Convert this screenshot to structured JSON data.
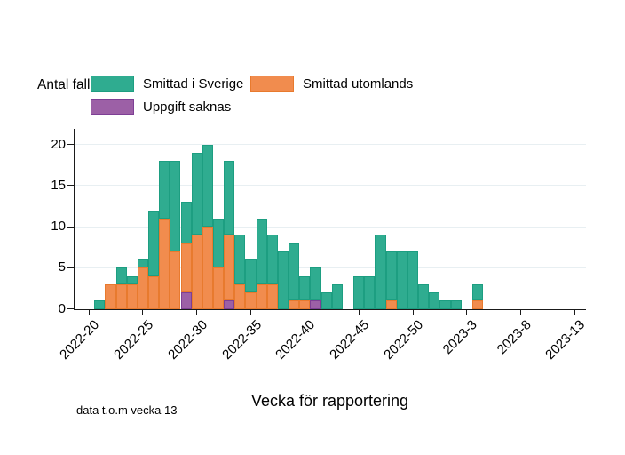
{
  "figure": {
    "y_axis_title": "Antal fall",
    "x_axis_title": "Vecka för rapportering",
    "footnote": "data t.o.m vecka 13"
  },
  "legend": {
    "items": [
      {
        "label": "Smittad i Sverige",
        "color": "#2FAC90",
        "border_color": "#1D9E81"
      },
      {
        "label": "Smittad utomlands",
        "color": "#F18C4E",
        "border_color": "#E87A2E"
      },
      {
        "label": "Uppgift saknas",
        "color": "#9C60A6",
        "border_color": "#7E3F95"
      }
    ]
  },
  "chart_data": {
    "type": "bar",
    "stacked": true,
    "stack_order": "bottom-to-top",
    "title": "",
    "xlabel": "Vecka för rapportering",
    "ylabel": "Antal fall",
    "ylim": [
      0,
      20
    ],
    "yticks": [
      0,
      5,
      10,
      15,
      20
    ],
    "grid": "horizontal",
    "grid_color": "#E8EFF2",
    "axis_color": "#1A1A1A",
    "legend_position": "top",
    "xticks_every": 5,
    "xtick_labels": [
      "2022-20",
      "2022-25",
      "2022-30",
      "2022-35",
      "2022-40",
      "2022-45",
      "2022-50",
      "2023-3",
      "2023-8",
      "2023-13"
    ],
    "categories": [
      "2022-20",
      "2022-21",
      "2022-22",
      "2022-23",
      "2022-24",
      "2022-25",
      "2022-26",
      "2022-27",
      "2022-28",
      "2022-29",
      "2022-30",
      "2022-31",
      "2022-32",
      "2022-33",
      "2022-34",
      "2022-35",
      "2022-36",
      "2022-37",
      "2022-38",
      "2022-39",
      "2022-40",
      "2022-41",
      "2022-42",
      "2022-43",
      "2022-44",
      "2022-45",
      "2022-46",
      "2022-47",
      "2022-48",
      "2022-49",
      "2022-50",
      "2022-51",
      "2022-52",
      "2023-1",
      "2023-2",
      "2023-3",
      "2023-4",
      "2023-5",
      "2023-6",
      "2023-7",
      "2023-8",
      "2023-9",
      "2023-10",
      "2023-11",
      "2023-12",
      "2023-13"
    ],
    "series": [
      {
        "name": "Uppgift saknas",
        "color": "#9C60A6",
        "border_color": "#7E3F95",
        "values": [
          0,
          0,
          0,
          0,
          0,
          0,
          0,
          0,
          0,
          2,
          0,
          0,
          0,
          1,
          0,
          0,
          0,
          0,
          0,
          0,
          0,
          1,
          0,
          0,
          0,
          0,
          0,
          0,
          0,
          0,
          0,
          0,
          0,
          0,
          0,
          0,
          0,
          0,
          0,
          0,
          0,
          0,
          0,
          0,
          0,
          0
        ]
      },
      {
        "name": "Smittad utomlands",
        "color": "#F18C4E",
        "border_color": "#E87A2E",
        "values": [
          0,
          0,
          3,
          3,
          3,
          5,
          4,
          11,
          7,
          6,
          9,
          10,
          5,
          8,
          3,
          2,
          3,
          3,
          0,
          1,
          1,
          0,
          0,
          0,
          0,
          0,
          0,
          0,
          1,
          0,
          0,
          0,
          0,
          0,
          0,
          0,
          1,
          0,
          0,
          0,
          0,
          0,
          0,
          0,
          0,
          0
        ]
      },
      {
        "name": "Smittad i Sverige",
        "color": "#2FAC90",
        "border_color": "#1D9E81",
        "values": [
          0,
          1,
          0,
          2,
          1,
          1,
          8,
          7,
          11,
          5,
          10,
          10,
          6,
          9,
          6,
          4,
          8,
          6,
          7,
          7,
          3,
          4,
          2,
          3,
          0,
          4,
          4,
          9,
          6,
          7,
          7,
          3,
          2,
          1,
          1,
          0,
          2,
          0,
          0,
          0,
          0,
          0,
          0,
          0,
          0,
          0
        ]
      }
    ]
  }
}
